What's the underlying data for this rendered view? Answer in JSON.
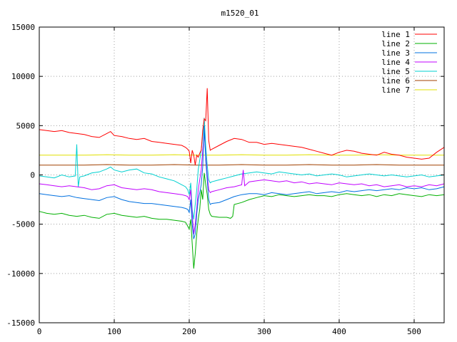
{
  "chart_data": {
    "type": "line",
    "title": "m1520_01",
    "xlabel": "",
    "ylabel": "",
    "xlim": [
      0,
      540
    ],
    "ylim": [
      -15000,
      15000
    ],
    "xticks": [
      0,
      100,
      200,
      300,
      400,
      500
    ],
    "yticks": [
      -15000,
      -10000,
      -5000,
      0,
      5000,
      10000,
      15000
    ],
    "grid": true,
    "legend_position": "top-right",
    "series": [
      {
        "name": "line 1",
        "color": "#ff0000",
        "x": [
          0,
          10,
          20,
          30,
          40,
          50,
          60,
          70,
          80,
          90,
          95,
          100,
          110,
          120,
          130,
          140,
          150,
          160,
          170,
          180,
          190,
          195,
          198,
          200,
          202,
          204,
          206,
          208,
          210,
          212,
          214,
          216,
          218,
          220,
          222,
          224,
          226,
          228,
          230,
          240,
          250,
          260,
          270,
          280,
          290,
          300,
          310,
          320,
          330,
          340,
          350,
          360,
          370,
          380,
          390,
          400,
          410,
          420,
          430,
          440,
          450,
          460,
          470,
          480,
          490,
          500,
          510,
          520,
          530,
          540
        ],
        "y": [
          4600,
          4500,
          4400,
          4500,
          4300,
          4200,
          4100,
          3900,
          3800,
          4200,
          4400,
          4000,
          3900,
          3700,
          3600,
          3700,
          3400,
          3300,
          3200,
          3100,
          3000,
          2800,
          2600,
          2400,
          1200,
          2500,
          2000,
          1000,
          2000,
          1800,
          2200,
          2500,
          4500,
          5700,
          5500,
          8800,
          3500,
          2500,
          2600,
          3000,
          3400,
          3700,
          3600,
          3300,
          3300,
          3100,
          3200,
          3100,
          3000,
          2900,
          2800,
          2600,
          2400,
          2200,
          2000,
          2300,
          2500,
          2400,
          2200,
          2100,
          2000,
          2300,
          2100,
          2000,
          1800,
          1700,
          1600,
          1700,
          2300,
          2800
        ]
      },
      {
        "name": "line 2",
        "color": "#00b000",
        "x": [
          0,
          10,
          20,
          30,
          40,
          50,
          60,
          70,
          80,
          90,
          100,
          110,
          120,
          130,
          140,
          150,
          160,
          170,
          180,
          190,
          195,
          198,
          200,
          202,
          204,
          206,
          208,
          210,
          212,
          214,
          216,
          218,
          220,
          222,
          224,
          226,
          228,
          230,
          240,
          250,
          255,
          258,
          260,
          270,
          280,
          290,
          300,
          310,
          320,
          330,
          340,
          350,
          360,
          370,
          380,
          390,
          400,
          410,
          420,
          430,
          440,
          450,
          460,
          470,
          480,
          490,
          500,
          510,
          520,
          530,
          540
        ],
        "y": [
          -3700,
          -3900,
          -4000,
          -3900,
          -4100,
          -4200,
          -4100,
          -4300,
          -4400,
          -4000,
          -3900,
          -4100,
          -4200,
          -4300,
          -4200,
          -4400,
          -4500,
          -4500,
          -4600,
          -4700,
          -4800,
          -5200,
          -5500,
          -4500,
          -7000,
          -9500,
          -8000,
          -6000,
          -4500,
          -3500,
          -1500,
          -2500,
          200,
          -1000,
          -2000,
          -3500,
          -4000,
          -4200,
          -4300,
          -4300,
          -4400,
          -4200,
          -3000,
          -2800,
          -2500,
          -2300,
          -2100,
          -2200,
          -2000,
          -2100,
          -2200,
          -2100,
          -2000,
          -2100,
          -2100,
          -2200,
          -2000,
          -1900,
          -2000,
          -2100,
          -2000,
          -2200,
          -2000,
          -2100,
          -1900,
          -2000,
          -2100,
          -2200,
          -2000,
          -2100,
          -2000
        ]
      },
      {
        "name": "line 3",
        "color": "#0070e0",
        "x": [
          0,
          10,
          20,
          30,
          40,
          50,
          60,
          70,
          80,
          90,
          100,
          110,
          120,
          130,
          140,
          150,
          160,
          170,
          180,
          190,
          195,
          198,
          200,
          202,
          204,
          206,
          208,
          210,
          212,
          214,
          216,
          218,
          220,
          222,
          224,
          226,
          228,
          230,
          240,
          250,
          260,
          270,
          280,
          290,
          300,
          310,
          320,
          330,
          340,
          350,
          360,
          370,
          380,
          390,
          400,
          410,
          420,
          430,
          440,
          450,
          460,
          470,
          480,
          490,
          500,
          510,
          520,
          530,
          540
        ],
        "y": [
          -1900,
          -2000,
          -2100,
          -2200,
          -2100,
          -2300,
          -2400,
          -2500,
          -2600,
          -2300,
          -2200,
          -2500,
          -2700,
          -2800,
          -2900,
          -2900,
          -3000,
          -3100,
          -3200,
          -3300,
          -3400,
          -3500,
          -3800,
          -2500,
          -5000,
          -6500,
          -6000,
          -4000,
          -2500,
          -1800,
          -1000,
          800,
          5000,
          1500,
          -500,
          -2500,
          -3000,
          -2900,
          -2800,
          -2500,
          -2200,
          -2000,
          -1900,
          -1900,
          -2000,
          -1800,
          -1900,
          -2000,
          -1900,
          -1800,
          -1700,
          -1900,
          -1800,
          -1700,
          -1800,
          -1600,
          -1700,
          -1600,
          -1500,
          -1600,
          -1500,
          -1400,
          -1500,
          -1300,
          -1400,
          -1300,
          -1500,
          -1400,
          -1200
        ]
      },
      {
        "name": "line 4",
        "color": "#c000ff",
        "x": [
          0,
          10,
          20,
          30,
          40,
          50,
          60,
          70,
          80,
          90,
          100,
          110,
          120,
          130,
          140,
          150,
          160,
          170,
          180,
          190,
          195,
          198,
          200,
          202,
          204,
          206,
          208,
          210,
          212,
          214,
          216,
          218,
          220,
          222,
          224,
          226,
          228,
          230,
          240,
          250,
          260,
          270,
          272,
          274,
          280,
          290,
          300,
          310,
          320,
          330,
          340,
          350,
          360,
          370,
          380,
          390,
          400,
          410,
          420,
          430,
          440,
          450,
          460,
          470,
          480,
          490,
          500,
          510,
          520,
          530,
          540
        ],
        "y": [
          -900,
          -1000,
          -1100,
          -1200,
          -1100,
          -1200,
          -1300,
          -1500,
          -1400,
          -1100,
          -1000,
          -1300,
          -1400,
          -1500,
          -1400,
          -1500,
          -1700,
          -1800,
          -1900,
          -2000,
          -2100,
          -2200,
          -2500,
          -1500,
          -4000,
          -6000,
          -5000,
          -3500,
          -1500,
          -500,
          500,
          2500,
          4300,
          2000,
          0,
          -1500,
          -1800,
          -1700,
          -1500,
          -1300,
          -1200,
          -1000,
          500,
          -1100,
          -700,
          -600,
          -500,
          -600,
          -700,
          -600,
          -800,
          -700,
          -900,
          -800,
          -900,
          -1000,
          -800,
          -900,
          -1000,
          -900,
          -1100,
          -1000,
          -1200,
          -1100,
          -1000,
          -1200,
          -1100,
          -1200,
          -1000,
          -1100,
          -900
        ]
      },
      {
        "name": "line 5",
        "color": "#00d0d0",
        "x": [
          0,
          10,
          20,
          30,
          40,
          48,
          50,
          52,
          54,
          60,
          70,
          80,
          90,
          95,
          100,
          110,
          120,
          130,
          140,
          150,
          160,
          170,
          180,
          190,
          195,
          198,
          200,
          202,
          204,
          206,
          208,
          210,
          212,
          214,
          216,
          218,
          220,
          222,
          224,
          226,
          228,
          230,
          240,
          250,
          260,
          270,
          280,
          290,
          300,
          310,
          320,
          330,
          340,
          350,
          360,
          370,
          380,
          390,
          400,
          410,
          420,
          430,
          440,
          450,
          460,
          470,
          480,
          490,
          500,
          510,
          520,
          530,
          540
        ],
        "y": [
          -100,
          -200,
          -300,
          0,
          -200,
          -100,
          3100,
          -1200,
          -200,
          -100,
          200,
          300,
          600,
          800,
          500,
          300,
          500,
          600,
          200,
          100,
          -200,
          -400,
          -600,
          -1000,
          -1200,
          -1500,
          -2000,
          -800,
          -3500,
          -4500,
          -3000,
          -1500,
          500,
          1500,
          2500,
          4000,
          5800,
          3000,
          1000,
          -500,
          -800,
          -700,
          -500,
          -300,
          -100,
          100,
          200,
          300,
          200,
          100,
          300,
          200,
          100,
          0,
          100,
          -100,
          0,
          100,
          0,
          -200,
          -100,
          0,
          100,
          0,
          -100,
          0,
          -100,
          -200,
          -100,
          0,
          -200,
          -100,
          0
        ]
      },
      {
        "name": "line 6",
        "color": "#a04000",
        "x": [
          0,
          30,
          60,
          90,
          120,
          150,
          180,
          210,
          240,
          270,
          300,
          330,
          360,
          390,
          420,
          450,
          480,
          510,
          540
        ],
        "y": [
          1000,
          1000,
          1000,
          1050,
          1000,
          1000,
          1050,
          1000,
          1000,
          1050,
          1000,
          1000,
          1050,
          1000,
          1000,
          1050,
          1000,
          1000,
          1000
        ]
      },
      {
        "name": "line 7",
        "color": "#e0e000",
        "x": [
          0,
          30,
          60,
          90,
          120,
          150,
          180,
          210,
          240,
          270,
          300,
          330,
          360,
          390,
          420,
          450,
          480,
          510,
          540
        ],
        "y": [
          2000,
          2000,
          2000,
          2050,
          2000,
          2000,
          2050,
          2000,
          2000,
          2050,
          2000,
          2000,
          2050,
          2000,
          2000,
          2050,
          2000,
          2000,
          2000
        ]
      }
    ]
  }
}
